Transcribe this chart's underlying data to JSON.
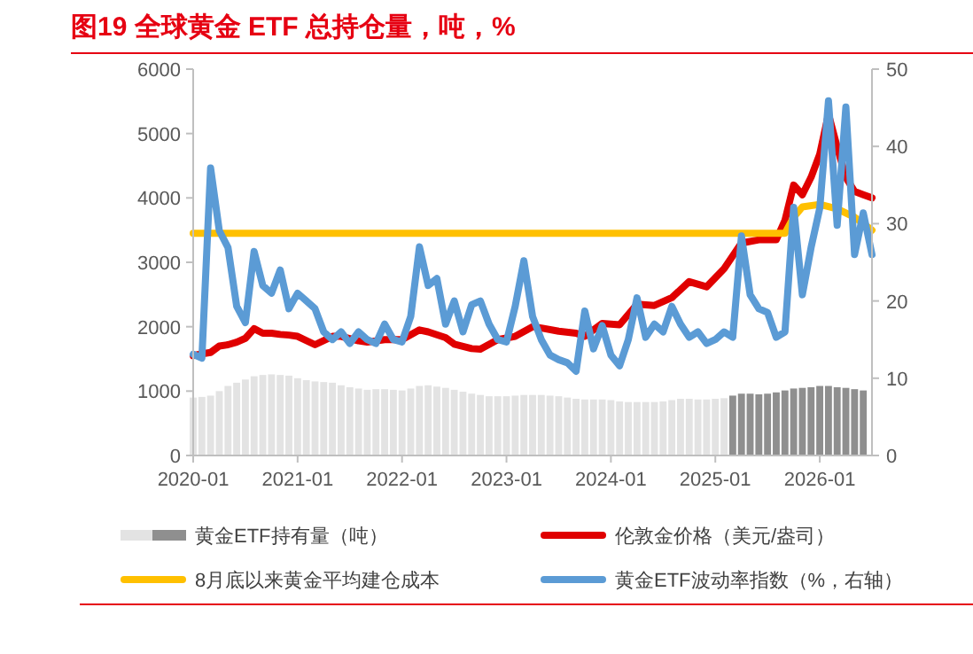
{
  "chart_data": {
    "type": "line",
    "title": "图19  全球黄金 ETF 总持仓量，吨，%",
    "xlim": [
      "2020-01",
      "2026-07"
    ],
    "xticks": [
      "2020-01",
      "2021-01",
      "2022-01",
      "2023-01",
      "2024-01",
      "2025-01",
      "2026-01"
    ],
    "ylim": [
      0,
      6000
    ],
    "yticks": [
      0,
      1000,
      2000,
      3000,
      4000,
      5000,
      6000
    ],
    "y2lim": [
      0,
      50
    ],
    "y2ticks": [
      0,
      10,
      20,
      30,
      40,
      50
    ],
    "legend": "bottom",
    "grid": false,
    "marker": "none",
    "line_style": "solid",
    "series": [
      {
        "name": "黄金ETF持有量（吨）",
        "type": "bar",
        "x": [
          "2020-01",
          "2020-02",
          "2020-03",
          "2020-04",
          "2020-05",
          "2020-06",
          "2020-07",
          "2020-08",
          "2020-09",
          "2020-10",
          "2020-11",
          "2020-12",
          "2021-01",
          "2021-02",
          "2021-03",
          "2021-04",
          "2021-05",
          "2021-06",
          "2021-07",
          "2021-08",
          "2021-09",
          "2021-10",
          "2021-11",
          "2021-12",
          "2022-01",
          "2022-02",
          "2022-03",
          "2022-04",
          "2022-05",
          "2022-06",
          "2022-07",
          "2022-08",
          "2022-09",
          "2022-10",
          "2022-11",
          "2022-12",
          "2023-01",
          "2023-02",
          "2023-03",
          "2023-04",
          "2023-05",
          "2023-06",
          "2023-07",
          "2023-08",
          "2023-09",
          "2023-10",
          "2023-11",
          "2023-12",
          "2024-01",
          "2024-02",
          "2024-03",
          "2024-04",
          "2024-05",
          "2024-06",
          "2024-07",
          "2024-08",
          "2024-09",
          "2024-10",
          "2024-11",
          "2024-12",
          "2025-01",
          "2025-02",
          "2025-03",
          "2025-04",
          "2025-05",
          "2025-06",
          "2025-07",
          "2025-08",
          "2025-09",
          "2025-10",
          "2025-11",
          "2025-12",
          "2026-01",
          "2026-02",
          "2026-03",
          "2026-04",
          "2026-05",
          "2026-06"
        ],
        "values": [
          900,
          910,
          930,
          1000,
          1080,
          1130,
          1180,
          1230,
          1250,
          1260,
          1250,
          1240,
          1200,
          1170,
          1150,
          1140,
          1130,
          1090,
          1060,
          1040,
          1020,
          1030,
          1030,
          1020,
          1010,
          1040,
          1080,
          1090,
          1070,
          1050,
          1020,
          990,
          960,
          940,
          920,
          920,
          920,
          930,
          940,
          940,
          940,
          930,
          920,
          900,
          880,
          870,
          870,
          870,
          860,
          840,
          830,
          830,
          830,
          830,
          840,
          860,
          880,
          880,
          870,
          870,
          880,
          890,
          930,
          960,
          960,
          950,
          960,
          980,
          1010,
          1040,
          1050,
          1060,
          1080,
          1080,
          1060,
          1050,
          1030,
          1010
        ],
        "colors": [
          "#e3e3e3",
          "#e3e3e3",
          "#e3e3e3",
          "#e3e3e3",
          "#e3e3e3",
          "#e3e3e3",
          "#e3e3e3",
          "#e3e3e3",
          "#e3e3e3",
          "#e3e3e3",
          "#e3e3e3",
          "#e3e3e3",
          "#e3e3e3",
          "#e3e3e3",
          "#e3e3e3",
          "#e3e3e3",
          "#e3e3e3",
          "#e3e3e3",
          "#e3e3e3",
          "#e3e3e3",
          "#e3e3e3",
          "#e3e3e3",
          "#e3e3e3",
          "#e3e3e3",
          "#e3e3e3",
          "#e3e3e3",
          "#e3e3e3",
          "#e3e3e3",
          "#e3e3e3",
          "#e3e3e3",
          "#e3e3e3",
          "#e3e3e3",
          "#e3e3e3",
          "#e3e3e3",
          "#e3e3e3",
          "#e3e3e3",
          "#e3e3e3",
          "#e3e3e3",
          "#e3e3e3",
          "#e3e3e3",
          "#e3e3e3",
          "#e3e3e3",
          "#e3e3e3",
          "#e3e3e3",
          "#e3e3e3",
          "#e3e3e3",
          "#e3e3e3",
          "#e3e3e3",
          "#e3e3e3",
          "#e3e3e3",
          "#e3e3e3",
          "#e3e3e3",
          "#e3e3e3",
          "#e3e3e3",
          "#e3e3e3",
          "#e3e3e3",
          "#e3e3e3",
          "#e3e3e3",
          "#e3e3e3",
          "#e3e3e3",
          "#e3e3e3",
          "#e3e3e3",
          "#8f8f8f",
          "#8f8f8f",
          "#8f8f8f",
          "#8f8f8f",
          "#8f8f8f",
          "#8f8f8f",
          "#8f8f8f",
          "#8f8f8f",
          "#8f8f8f",
          "#8f8f8f",
          "#8f8f8f",
          "#8f8f8f",
          "#8f8f8f",
          "#8f8f8f",
          "#8f8f8f",
          "#8f8f8f"
        ]
      },
      {
        "name": "伦敦金价格（美元/盎司）",
        "color": "#e00000",
        "x": [
          "2020-01",
          "2020-02",
          "2020-03",
          "2020-04",
          "2020-05",
          "2020-06",
          "2020-07",
          "2020-08",
          "2020-09",
          "2020-10",
          "2020-11",
          "2020-12",
          "2021-01",
          "2021-03",
          "2021-05",
          "2021-06",
          "2021-08",
          "2021-09",
          "2021-11",
          "2022-01",
          "2022-03",
          "2022-04",
          "2022-06",
          "2022-07",
          "2022-09",
          "2022-10",
          "2022-12",
          "2023-02",
          "2023-04",
          "2023-05",
          "2023-07",
          "2023-09",
          "2023-10",
          "2023-12",
          "2024-02",
          "2024-04",
          "2024-06",
          "2024-08",
          "2024-10",
          "2024-12",
          "2025-02",
          "2025-04",
          "2025-06",
          "2025-08",
          "2025-09",
          "2025-10",
          "2025-11",
          "2025-12",
          "2026-01",
          "2026-02",
          "2026-03",
          "2026-04",
          "2026-05",
          "2026-06",
          "2026-07"
        ],
        "values": [
          1550,
          1580,
          1600,
          1700,
          1720,
          1760,
          1820,
          1970,
          1900,
          1900,
          1880,
          1870,
          1850,
          1720,
          1850,
          1850,
          1780,
          1760,
          1800,
          1800,
          1950,
          1920,
          1830,
          1730,
          1660,
          1650,
          1800,
          1850,
          2000,
          1980,
          1930,
          1900,
          1850,
          2050,
          2030,
          2350,
          2330,
          2450,
          2700,
          2620,
          2900,
          3300,
          3350,
          3350,
          3650,
          4200,
          4050,
          4320,
          4680,
          5300,
          4790,
          4320,
          4100,
          4050,
          4000
        ]
      },
      {
        "name": "8月底以来黄金平均建仓成本",
        "color": "#ffc000",
        "x": [
          "2020-01",
          "2025-09",
          "2025-10",
          "2025-11",
          "2026-01",
          "2026-03",
          "2026-05",
          "2026-07"
        ],
        "values": [
          3450,
          3450,
          3700,
          3860,
          3900,
          3830,
          3700,
          3500
        ]
      },
      {
        "name": "黄金ETF波动率指数（%，右轴）",
        "axis": "y2",
        "color": "#5b9bd5",
        "x": [
          "2020-01",
          "2020-02",
          "2020-03",
          "2020-04",
          "2020-05",
          "2020-06",
          "2020-07",
          "2020-08",
          "2020-09",
          "2020-10",
          "2020-11",
          "2020-12",
          "2021-01",
          "2021-02",
          "2021-03",
          "2021-04",
          "2021-05",
          "2021-06",
          "2021-07",
          "2021-08",
          "2021-09",
          "2021-10",
          "2021-11",
          "2021-12",
          "2022-01",
          "2022-02",
          "2022-03",
          "2022-04",
          "2022-05",
          "2022-06",
          "2022-07",
          "2022-08",
          "2022-09",
          "2022-10",
          "2022-11",
          "2022-12",
          "2023-01",
          "2023-02",
          "2023-03",
          "2023-04",
          "2023-05",
          "2023-06",
          "2023-07",
          "2023-08",
          "2023-09",
          "2023-10",
          "2023-11",
          "2023-12",
          "2024-01",
          "2024-02",
          "2024-03",
          "2024-04",
          "2024-05",
          "2024-06",
          "2024-07",
          "2024-08",
          "2024-09",
          "2024-10",
          "2024-11",
          "2024-12",
          "2025-01",
          "2025-02",
          "2025-03",
          "2025-04",
          "2025-05",
          "2025-06",
          "2025-07",
          "2025-08",
          "2025-09",
          "2025-10",
          "2025-11",
          "2025-12",
          "2026-01",
          "2026-02",
          "2026-03",
          "2026-04",
          "2026-05",
          "2026-06",
          "2026-07"
        ],
        "values": [
          13.1,
          12.6,
          37.2,
          29.1,
          26.9,
          19.3,
          17.2,
          26.4,
          22,
          21,
          24,
          19,
          21,
          20,
          19,
          16,
          15,
          16,
          14.5,
          16,
          15,
          14.5,
          17,
          15,
          14.7,
          18,
          27,
          22,
          22.9,
          17,
          20,
          16,
          19.5,
          20,
          17,
          15,
          14.7,
          19.3,
          25.2,
          18,
          15,
          13,
          12.4,
          12,
          10.9,
          18.7,
          13.8,
          16.8,
          13,
          11.6,
          15,
          20.4,
          15.3,
          17,
          16,
          19.3,
          17,
          15.3,
          16,
          14.5,
          15,
          16,
          15.3,
          28.4,
          20.8,
          19,
          18.5,
          15.3,
          16,
          32.1,
          20.8,
          26.9,
          32,
          45.9,
          29.8,
          45.1,
          26,
          31.4,
          26
        ]
      }
    ]
  }
}
